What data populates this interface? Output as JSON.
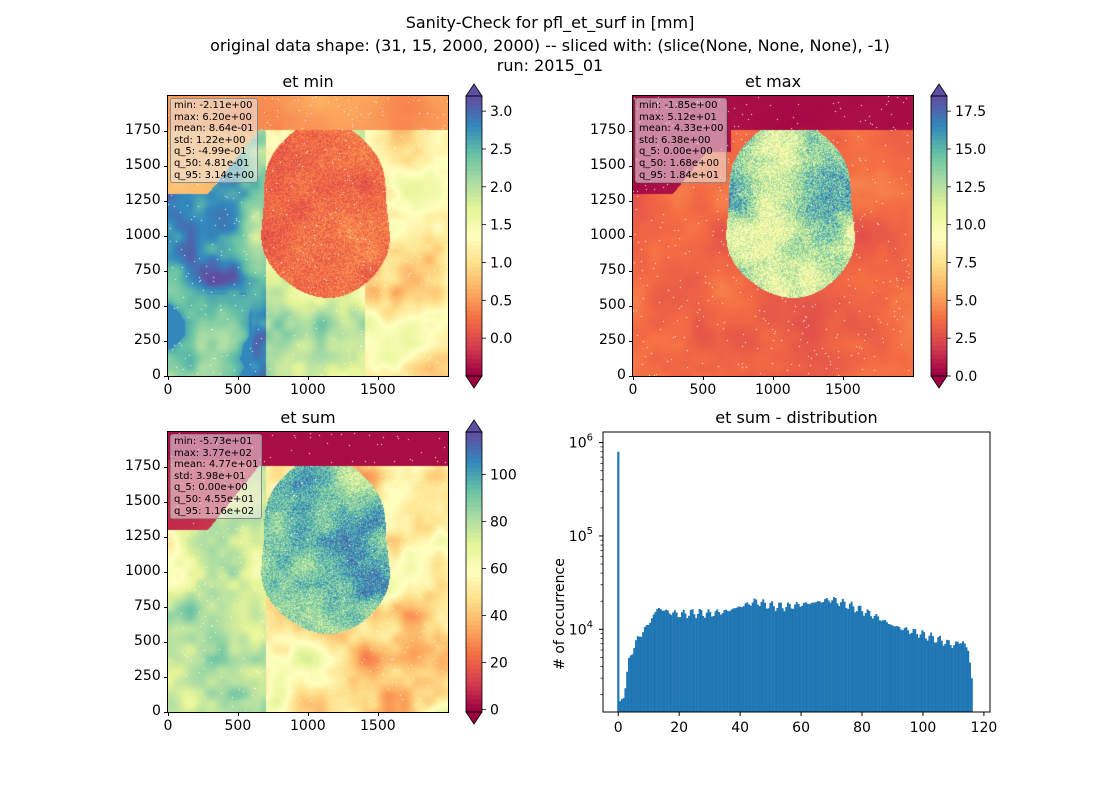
{
  "suptitle": {
    "line1": "Sanity-Check for pfl_et_surf in [mm]",
    "line2": "original data shape: (31, 15, 2000, 2000) -- sliced with: (slice(None, None, None), -1)",
    "line3": "run: 2015_01"
  },
  "colors": {
    "hist_bar": "#1f77b4",
    "missing": "#ffffff"
  },
  "chart_data": [
    {
      "type": "heatmap",
      "title": "et min",
      "colormap": "Spectral",
      "x_range": [
        0,
        2000
      ],
      "y_range": [
        0,
        2000
      ],
      "x_ticks": [
        "0",
        "500",
        "1000",
        "1500"
      ],
      "y_ticks": [
        "0",
        "250",
        "500",
        "750",
        "1000",
        "1250",
        "1500",
        "1750"
      ],
      "colorbar": {
        "range": [
          -0.5,
          3.2
        ],
        "ticks": [
          "0.0",
          "0.5",
          "1.0",
          "1.5",
          "2.0",
          "2.5",
          "3.0"
        ],
        "extend": "both"
      },
      "stats": [
        "min: -2.11e+00",
        "max: 6.20e+00",
        "mean: 8.64e-01",
        "std: 1.22e+00",
        "q_5: -4.99e-01",
        "q_50: 4.81e-01",
        "q_95: 3.14e+00"
      ]
    },
    {
      "type": "heatmap",
      "title": "et max",
      "colormap": "Spectral",
      "x_range": [
        0,
        2000
      ],
      "y_range": [
        0,
        2000
      ],
      "x_ticks": [
        "0",
        "500",
        "1000",
        "1500"
      ],
      "y_ticks": [
        "0",
        "250",
        "500",
        "750",
        "1000",
        "1250",
        "1500",
        "1750"
      ],
      "colorbar": {
        "range": [
          0,
          18.5
        ],
        "ticks": [
          "0.0",
          "2.5",
          "5.0",
          "7.5",
          "10.0",
          "12.5",
          "15.0",
          "17.5"
        ],
        "extend": "both"
      },
      "stats": [
        "min: -1.85e+00",
        "max: 5.12e+01",
        "mean: 4.33e+00",
        "std: 6.38e+00",
        "q_5: 0.00e+00",
        "q_50: 1.68e+00",
        "q_95: 1.84e+01"
      ]
    },
    {
      "type": "heatmap",
      "title": "et sum",
      "colormap": "Spectral",
      "x_range": [
        0,
        2000
      ],
      "y_range": [
        0,
        2000
      ],
      "x_ticks": [
        "0",
        "500",
        "1000",
        "1500"
      ],
      "y_ticks": [
        "0",
        "250",
        "500",
        "750",
        "1000",
        "1250",
        "1500",
        "1750"
      ],
      "colorbar": {
        "range": [
          -1,
          118
        ],
        "ticks": [
          "0",
          "20",
          "40",
          "60",
          "80",
          "100"
        ],
        "extend": "both"
      },
      "stats": [
        "min: -5.73e+01",
        "max: 3.77e+02",
        "mean: 4.77e+01",
        "std: 3.98e+01",
        "q_5: 0.00e+00",
        "q_50: 4.55e+01",
        "q_95: 1.16e+02"
      ]
    },
    {
      "type": "bar",
      "title": "et sum - distribution",
      "xlabel": "",
      "ylabel": "# of occurrence",
      "yscale": "log",
      "xlim": [
        -5,
        122
      ],
      "ylim": [
        1300,
        1300000
      ],
      "x_ticks": [
        "0",
        "20",
        "40",
        "60",
        "80",
        "100",
        "120"
      ],
      "y_ticks": [
        "10^4",
        "10^5",
        "10^6"
      ],
      "spike": {
        "x": 0,
        "value": 800000
      },
      "bin_centers_range": [
        0,
        116
      ],
      "bin_width": 0.58,
      "envelope": [
        [
          0.5,
          1500
        ],
        [
          1.5,
          1800
        ],
        [
          2.5,
          2800
        ],
        [
          3.5,
          4500
        ],
        [
          5,
          6500
        ],
        [
          7,
          8500
        ],
        [
          10,
          11500
        ],
        [
          13,
          17000
        ],
        [
          16,
          15500
        ],
        [
          20,
          14500
        ],
        [
          25,
          15000
        ],
        [
          30,
          14800
        ],
        [
          35,
          15500
        ],
        [
          40,
          17500
        ],
        [
          45,
          20000
        ],
        [
          50,
          18000
        ],
        [
          55,
          17500
        ],
        [
          60,
          18500
        ],
        [
          65,
          19500
        ],
        [
          70,
          21000
        ],
        [
          75,
          18500
        ],
        [
          80,
          16000
        ],
        [
          85,
          13500
        ],
        [
          90,
          11000
        ],
        [
          95,
          9800
        ],
        [
          100,
          8800
        ],
        [
          105,
          7800
        ],
        [
          110,
          6800
        ],
        [
          113,
          7500
        ],
        [
          115,
          5800
        ],
        [
          116,
          3000
        ]
      ]
    }
  ]
}
